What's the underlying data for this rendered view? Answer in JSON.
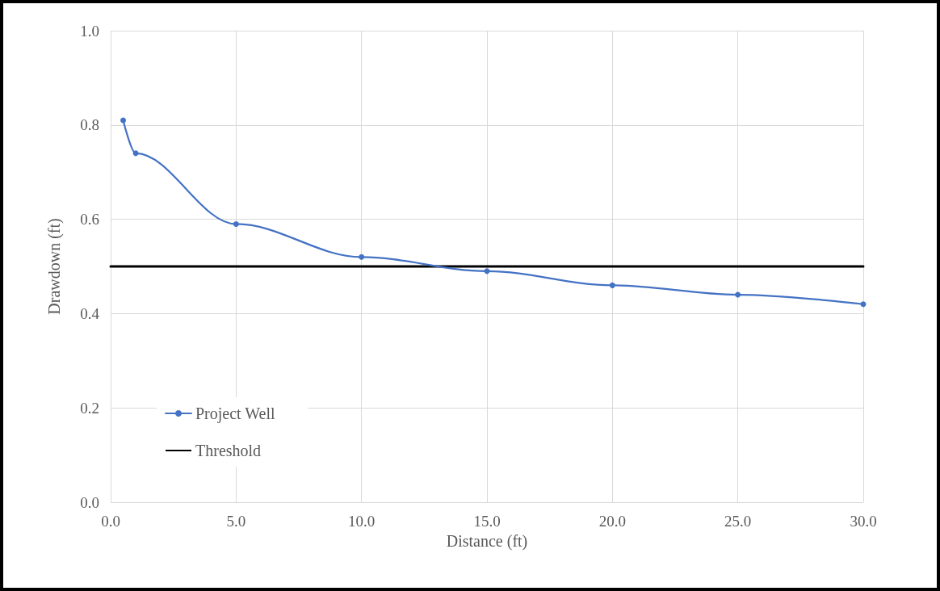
{
  "chart_data": {
    "type": "line",
    "xlabel": "Distance (ft)",
    "ylabel": "Drawdown (ft)",
    "xlim": [
      0,
      30
    ],
    "xticks": [
      {
        "value": 0,
        "label": "0.0"
      },
      {
        "value": 5,
        "label": "5.0"
      },
      {
        "value": 10,
        "label": "10.0"
      },
      {
        "value": 15,
        "label": "15.0"
      },
      {
        "value": 20,
        "label": "20.0"
      },
      {
        "value": 25,
        "label": "25.0"
      },
      {
        "value": 30,
        "label": "30.0"
      }
    ],
    "ylim": [
      0,
      1
    ],
    "yticks": [
      {
        "value": 0,
        "label": "0.0"
      },
      {
        "value": 0.2,
        "label": "0.2"
      },
      {
        "value": 0.4,
        "label": "0.4"
      },
      {
        "value": 0.6,
        "label": "0.6"
      },
      {
        "value": 0.8,
        "label": "0.8"
      },
      {
        "value": 1,
        "label": "1.0"
      }
    ],
    "grid": true,
    "legend": "bottom left",
    "marker": "circle",
    "line_style": "solid",
    "series": [
      {
        "name": "Project Well",
        "color": "#4472c4",
        "x": [
          0.5,
          1,
          5,
          10,
          15,
          20,
          25,
          30
        ],
        "values": [
          0.81,
          0.74,
          0.59,
          0.52,
          0.49,
          0.46,
          0.44,
          0.42
        ]
      },
      {
        "name": "Threshold",
        "color": "#000000",
        "type": "line",
        "marker": "none",
        "x": [
          0,
          30
        ],
        "values": [
          0.5,
          0.5
        ]
      }
    ]
  }
}
